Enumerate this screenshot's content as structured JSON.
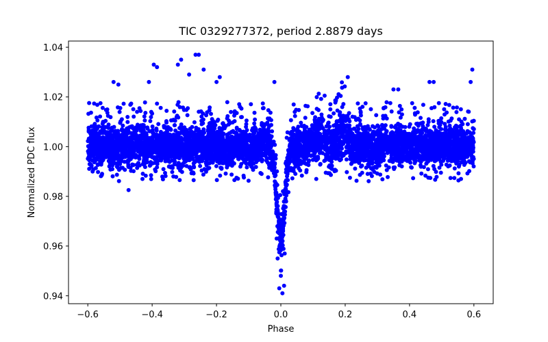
{
  "chart_data": {
    "type": "scatter",
    "title": "TIC 0329277372, period 2.8879 days",
    "xlabel": "Phase",
    "ylabel": "Normalized PDC flux",
    "xlim": [
      -0.66,
      0.66
    ],
    "ylim": [
      0.9368,
      1.0425
    ],
    "x_ticks": [
      -0.6,
      -0.4,
      -0.2,
      0.0,
      0.2,
      0.4,
      0.6
    ],
    "x_tick_labels": [
      "−0.6",
      "−0.4",
      "−0.2",
      "0.0",
      "0.2",
      "0.4",
      "0.6"
    ],
    "y_ticks": [
      0.94,
      0.96,
      0.98,
      1.0,
      1.02,
      1.04
    ],
    "y_tick_labels": [
      "0.94",
      "0.96",
      "0.98",
      "1.00",
      "1.02",
      "1.04"
    ],
    "grid": false,
    "series": [
      {
        "name": "PDC flux",
        "color": "#0000ff",
        "marker": "circle",
        "phase_range": [
          -0.6,
          0.6
        ],
        "baseline_flux": 1.0,
        "baseline_band": [
          0.993,
          1.007
        ],
        "scatter_envelope": [
          0.986,
          1.018
        ],
        "transit": {
          "center_phase": 0.0,
          "half_width_phase": 0.035,
          "depth_flux": 0.943
        },
        "bumps": [
          {
            "phase": 0.12,
            "peak_flux": 1.015
          },
          {
            "phase": 0.19,
            "peak_flux": 1.021
          }
        ],
        "outliers": [
          {
            "x": -0.395,
            "y": 1.033
          },
          {
            "x": -0.385,
            "y": 1.032
          },
          {
            "x": -0.31,
            "y": 1.035
          },
          {
            "x": -0.32,
            "y": 1.033
          },
          {
            "x": -0.265,
            "y": 1.037
          },
          {
            "x": -0.255,
            "y": 1.037
          },
          {
            "x": -0.24,
            "y": 1.031
          },
          {
            "x": -0.285,
            "y": 1.029
          },
          {
            "x": -0.41,
            "y": 1.026
          },
          {
            "x": -0.19,
            "y": 1.028
          },
          {
            "x": -0.2,
            "y": 1.026
          },
          {
            "x": 0.208,
            "y": 1.028
          },
          {
            "x": 0.595,
            "y": 1.031
          },
          {
            "x": 0.59,
            "y": 1.026
          },
          {
            "x": -0.02,
            "y": 1.026
          },
          {
            "x": 0.462,
            "y": 1.026
          },
          {
            "x": 0.475,
            "y": 1.026
          },
          {
            "x": -0.52,
            "y": 1.026
          },
          {
            "x": -0.505,
            "y": 1.025
          },
          {
            "x": 0.35,
            "y": 1.023
          },
          {
            "x": 0.365,
            "y": 1.023
          },
          {
            "x": 0.005,
            "y": 0.941
          },
          {
            "x": -0.005,
            "y": 0.943
          },
          {
            "x": 0.01,
            "y": 0.944
          },
          {
            "x": 0.0,
            "y": 0.948
          },
          {
            "x": -0.01,
            "y": 0.955
          },
          {
            "x": 0.012,
            "y": 0.957
          },
          {
            "x": -0.013,
            "y": 0.963
          },
          {
            "x": -0.585,
            "y": 0.99
          },
          {
            "x": 0.11,
            "y": 0.987
          },
          {
            "x": -0.43,
            "y": 0.987
          },
          {
            "x": 0.56,
            "y": 0.987
          }
        ]
      }
    ]
  }
}
